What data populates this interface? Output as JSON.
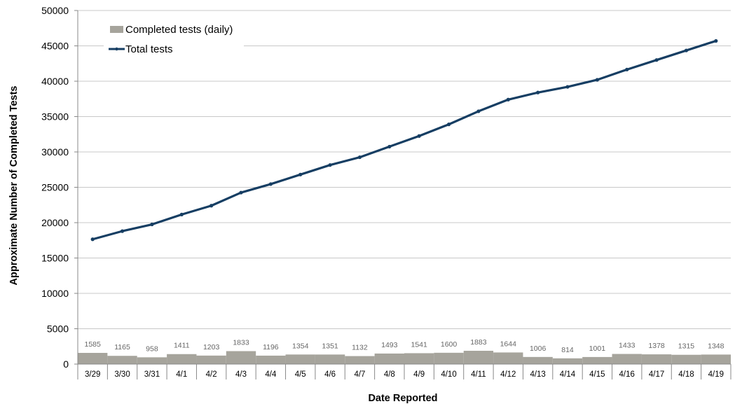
{
  "chart_data": {
    "type": "bar",
    "title": "",
    "xlabel": "Date Reported",
    "ylabel": "Approximate Number of Completed Tests",
    "ylim": [
      0,
      50000
    ],
    "y_ticks": [
      0,
      5000,
      10000,
      15000,
      20000,
      25000,
      30000,
      35000,
      40000,
      45000,
      50000
    ],
    "grid": true,
    "legend_position": "top-left",
    "categories": [
      "3/29",
      "3/30",
      "3/31",
      "4/1",
      "4/2",
      "4/3",
      "4/4",
      "4/5",
      "4/6",
      "4/7",
      "4/8",
      "4/9",
      "4/10",
      "4/11",
      "4/12",
      "4/13",
      "4/14",
      "4/15",
      "4/16",
      "4/17",
      "4/18",
      "4/19"
    ],
    "series": [
      {
        "name": "Completed tests (daily)",
        "type": "bar",
        "color": "#a6a49c",
        "values": [
          1585,
          1165,
          958,
          1411,
          1203,
          1833,
          1196,
          1354,
          1351,
          1132,
          1493,
          1541,
          1600,
          1883,
          1644,
          1006,
          814,
          1001,
          1433,
          1378,
          1315,
          1348
        ]
      },
      {
        "name": "Total tests",
        "type": "line",
        "color": "#163e63",
        "values": [
          17650,
          18800,
          19750,
          21150,
          22400,
          24250,
          25450,
          26800,
          28150,
          29250,
          30750,
          32250,
          33900,
          35750,
          37400,
          38400,
          39200,
          40200,
          41650,
          43000,
          44350,
          45700
        ]
      }
    ]
  }
}
